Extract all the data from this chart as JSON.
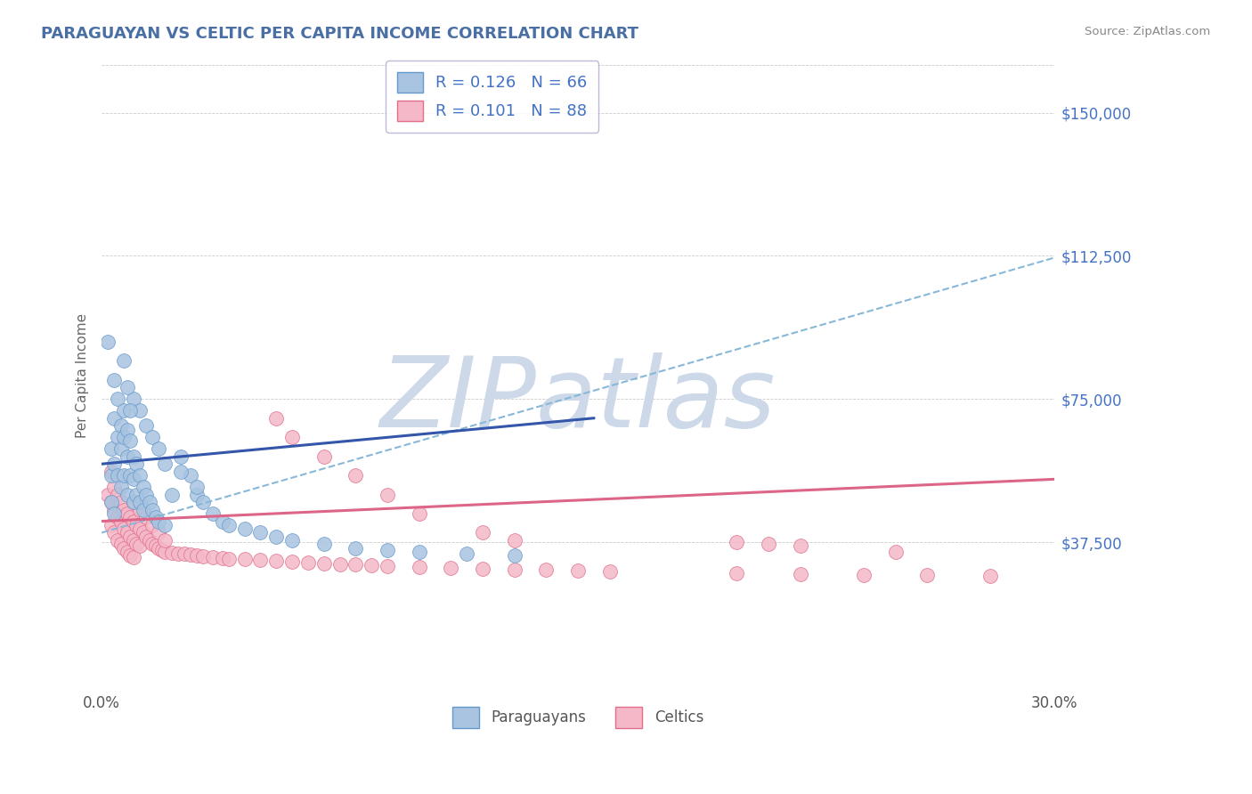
{
  "title": "PARAGUAYAN VS CELTIC PER CAPITA INCOME CORRELATION CHART",
  "source_text": "Source: ZipAtlas.com",
  "ylabel": "Per Capita Income",
  "xlim": [
    0.0,
    0.3
  ],
  "ylim": [
    0,
    162500
  ],
  "yticks": [
    0,
    37500,
    75000,
    112500,
    150000
  ],
  "ytick_labels": [
    "",
    "$37,500",
    "$75,000",
    "$112,500",
    "$150,000"
  ],
  "xticks": [
    0.0,
    0.05,
    0.1,
    0.15,
    0.2,
    0.25,
    0.3
  ],
  "title_color": "#4a6fa5",
  "background_color": "#ffffff",
  "watermark_text": "ZIPatlas",
  "watermark_color": "#cdd9e8",
  "paraguayan_color": "#a8c4e0",
  "paraguayan_edge": "#6699cc",
  "celtic_color": "#f4b8c8",
  "celtic_edge": "#e0708a",
  "trend_paraguayan_color": "#3355aa",
  "trend_celtic_color": "#dd6688",
  "trend_dashed_color": "#88b8d8",
  "legend_text_color": "#4472c4",
  "source_color": "#888888",
  "tick_color": "#555555",
  "ylabel_color": "#666666",
  "grid_color": "#cccccc",
  "legend_label1": "Paraguayans",
  "legend_label2": "Celtics",
  "par_trend_x0": 0.0,
  "par_trend_y0": 58000,
  "par_trend_x1": 0.155,
  "par_trend_y1": 70000,
  "cel_trend_x0": 0.0,
  "cel_trend_y0": 43000,
  "cel_trend_x1": 0.3,
  "cel_trend_y1": 54000,
  "dash_trend_x0": 0.0,
  "dash_trend_y0": 40000,
  "dash_trend_x1": 0.3,
  "dash_trend_y1": 112000,
  "par_x": [
    0.002,
    0.003,
    0.003,
    0.003,
    0.004,
    0.004,
    0.004,
    0.004,
    0.005,
    0.005,
    0.005,
    0.006,
    0.006,
    0.006,
    0.007,
    0.007,
    0.007,
    0.008,
    0.008,
    0.008,
    0.009,
    0.009,
    0.01,
    0.01,
    0.01,
    0.011,
    0.011,
    0.012,
    0.012,
    0.013,
    0.013,
    0.014,
    0.015,
    0.016,
    0.017,
    0.018,
    0.02,
    0.022,
    0.025,
    0.028,
    0.03,
    0.032,
    0.035,
    0.038,
    0.04,
    0.045,
    0.05,
    0.055,
    0.06,
    0.07,
    0.08,
    0.09,
    0.1,
    0.115,
    0.13,
    0.01,
    0.012,
    0.014,
    0.016,
    0.018,
    0.02,
    0.025,
    0.03,
    0.007,
    0.008,
    0.009
  ],
  "par_y": [
    90000,
    55000,
    62000,
    48000,
    80000,
    70000,
    58000,
    45000,
    75000,
    65000,
    55000,
    68000,
    62000,
    52000,
    72000,
    65000,
    55000,
    67000,
    60000,
    50000,
    64000,
    55000,
    60000,
    54000,
    48000,
    58000,
    50000,
    55000,
    48000,
    52000,
    46000,
    50000,
    48000,
    46000,
    44000,
    43000,
    42000,
    50000,
    60000,
    55000,
    50000,
    48000,
    45000,
    43000,
    42000,
    41000,
    40000,
    39000,
    38000,
    37000,
    36000,
    35500,
    35000,
    34500,
    34000,
    75000,
    72000,
    68000,
    65000,
    62000,
    58000,
    56000,
    52000,
    85000,
    78000,
    72000
  ],
  "cel_x": [
    0.002,
    0.003,
    0.003,
    0.003,
    0.004,
    0.004,
    0.004,
    0.005,
    0.005,
    0.005,
    0.006,
    0.006,
    0.006,
    0.007,
    0.007,
    0.007,
    0.008,
    0.008,
    0.008,
    0.009,
    0.009,
    0.009,
    0.01,
    0.01,
    0.01,
    0.011,
    0.011,
    0.012,
    0.012,
    0.013,
    0.014,
    0.015,
    0.016,
    0.017,
    0.018,
    0.019,
    0.02,
    0.022,
    0.024,
    0.026,
    0.028,
    0.03,
    0.032,
    0.035,
    0.038,
    0.04,
    0.045,
    0.05,
    0.055,
    0.06,
    0.065,
    0.07,
    0.075,
    0.08,
    0.085,
    0.09,
    0.1,
    0.11,
    0.12,
    0.13,
    0.14,
    0.15,
    0.16,
    0.2,
    0.22,
    0.24,
    0.26,
    0.28,
    0.01,
    0.012,
    0.014,
    0.016,
    0.018,
    0.02,
    0.055,
    0.06,
    0.07,
    0.08,
    0.09,
    0.1,
    0.12,
    0.13,
    0.2,
    0.21,
    0.22,
    0.25
  ],
  "cel_y": [
    50000,
    56000,
    48000,
    42000,
    52000,
    46000,
    40000,
    50000,
    44000,
    38000,
    48000,
    43000,
    37000,
    46000,
    41000,
    36000,
    45000,
    40000,
    35000,
    44000,
    39000,
    34000,
    43000,
    38000,
    33500,
    42000,
    37000,
    41000,
    36500,
    40000,
    39000,
    38000,
    37000,
    36500,
    36000,
    35500,
    35000,
    34800,
    34600,
    34400,
    34200,
    34000,
    33800,
    33600,
    33400,
    33200,
    33000,
    32800,
    32600,
    32400,
    32200,
    32000,
    31800,
    31600,
    31400,
    31200,
    31000,
    30800,
    30600,
    30400,
    30200,
    30000,
    29800,
    29400,
    29200,
    29000,
    28800,
    28600,
    48000,
    46000,
    44000,
    42000,
    40000,
    38000,
    70000,
    65000,
    60000,
    55000,
    50000,
    45000,
    40000,
    38000,
    37500,
    37000,
    36500,
    35000
  ]
}
